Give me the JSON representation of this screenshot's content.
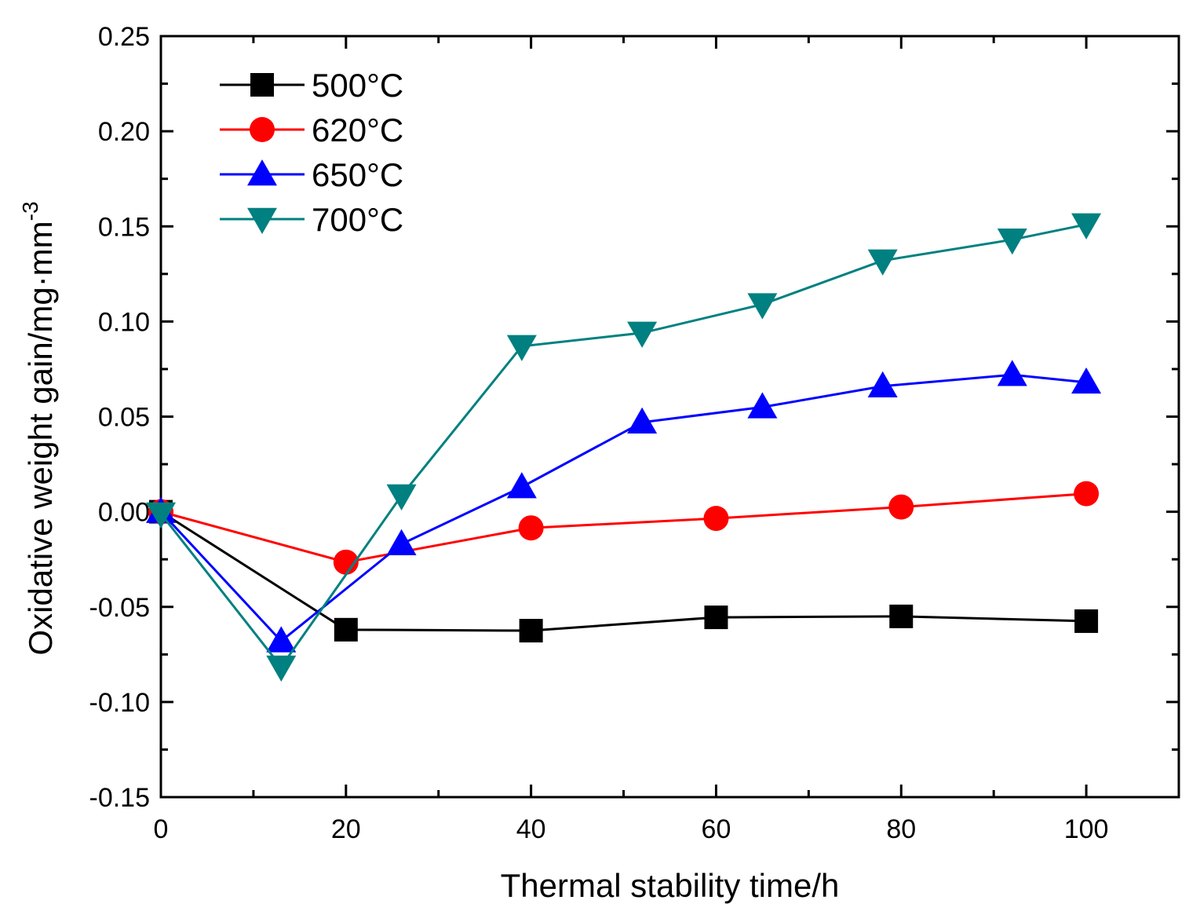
{
  "chart_data": {
    "type": "line",
    "title": "",
    "xlabel": "Thermal stability time/h",
    "ylabel_main": "Oxidative weight gain/mg·mm",
    "ylabel_sup": "-3",
    "xlim": [
      0,
      110
    ],
    "ylim": [
      -0.15,
      0.25
    ],
    "xticks": [
      0,
      20,
      40,
      60,
      80,
      100
    ],
    "xtick_labels": [
      "0",
      "20",
      "40",
      "60",
      "80",
      "100"
    ],
    "yticks": [
      -0.15,
      -0.1,
      -0.05,
      0.0,
      0.05,
      0.1,
      0.15,
      0.2,
      0.25
    ],
    "ytick_labels": [
      "-0.15",
      "-0.10",
      "-0.05",
      "0.00",
      "0.05",
      "0.10",
      "0.15",
      "0.20",
      "0.25"
    ],
    "grid": false,
    "legend_position": "top-left",
    "series": [
      {
        "name": "500°C",
        "color": "#000000",
        "marker": "square",
        "x": [
          0,
          20,
          40,
          60,
          80,
          100
        ],
        "y": [
          0.0,
          -0.062,
          -0.0625,
          -0.0555,
          -0.055,
          -0.0575
        ]
      },
      {
        "name": "620°C",
        "color": "#ff0000",
        "marker": "circle",
        "x": [
          0,
          20,
          40,
          60,
          80,
          100
        ],
        "y": [
          0.0,
          -0.0265,
          -0.0085,
          -0.0035,
          0.0025,
          0.0095
        ]
      },
      {
        "name": "650°C",
        "color": "#0000ff",
        "marker": "triangle-up",
        "x": [
          0,
          13,
          26,
          39,
          52,
          65,
          78,
          92,
          100
        ],
        "y": [
          0.0,
          -0.068,
          -0.017,
          0.013,
          0.047,
          0.055,
          0.066,
          0.072,
          0.068
        ]
      },
      {
        "name": "700°C",
        "color": "#008080",
        "marker": "triangle-down",
        "x": [
          0,
          13,
          26,
          39,
          52,
          65,
          78,
          92,
          100
        ],
        "y": [
          -0.001,
          -0.0815,
          0.0085,
          0.087,
          0.094,
          0.109,
          0.132,
          0.143,
          0.151
        ]
      }
    ]
  }
}
